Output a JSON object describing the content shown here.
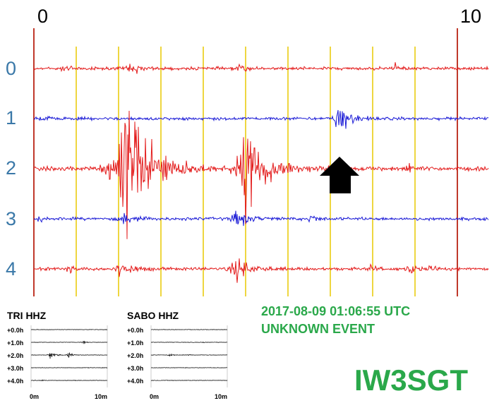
{
  "plot": {
    "x_start_label": "0",
    "x_end_label": "10",
    "row_labels": [
      "0",
      "1",
      "2",
      "3",
      "4"
    ],
    "trace_colors": [
      "#e31b1b",
      "#1a1ad6",
      "#e31b1b",
      "#1a1ad6",
      "#e31b1b"
    ],
    "grid_color": "#e8c800",
    "edge_color": "#c0392b"
  },
  "event": {
    "timestamp": "2017-08-09 01:06:55 UTC",
    "label": "UNKNOWN EVENT",
    "color": "#2aa84a"
  },
  "stations": [
    {
      "name": "TRI HHZ",
      "row_labels": [
        "+0.0h",
        "+1.0h",
        "+2.0h",
        "+3.0h",
        "+4.0h"
      ],
      "x_start": "0m",
      "x_end": "10m"
    },
    {
      "name": "SABO HHZ",
      "row_labels": [
        "+0.0h",
        "+1.0h",
        "+2.0h",
        "+3.0h",
        "+4.0h"
      ],
      "x_start": "0m",
      "x_end": "10m"
    }
  ],
  "callsign": "IW3SGT"
}
